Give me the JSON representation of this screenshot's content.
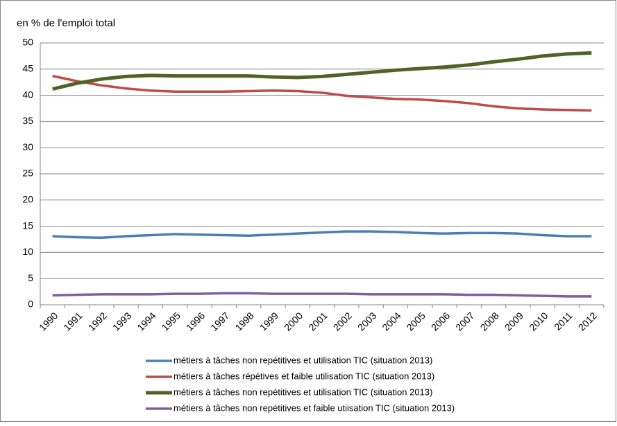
{
  "chart_data": {
    "type": "line",
    "y_axis_title": "en % de l'emploi total",
    "categories": [
      "1990",
      "1991",
      "1992",
      "1993",
      "1994",
      "1995",
      "1996",
      "1997",
      "1998",
      "1999",
      "2000",
      "2001",
      "2002",
      "2003",
      "2004",
      "2005",
      "2006",
      "2007",
      "2008",
      "2009",
      "2010",
      "2011",
      "2012"
    ],
    "series": [
      {
        "name": "métiers à tâches non repétitives et utilisation TIC (situation 2013)",
        "color": "#4a7ebb",
        "values": [
          13.1,
          12.9,
          12.8,
          13.1,
          13.3,
          13.5,
          13.4,
          13.3,
          13.2,
          13.4,
          13.6,
          13.8,
          14.0,
          14.0,
          13.9,
          13.7,
          13.6,
          13.7,
          13.7,
          13.6,
          13.3,
          13.1,
          13.1
        ]
      },
      {
        "name": "métiers à tâches répétives et faible utilisation TIC (situation 2013)",
        "color": "#be4b48",
        "values": [
          43.7,
          42.7,
          41.9,
          41.3,
          40.9,
          40.7,
          40.7,
          40.7,
          40.8,
          40.9,
          40.8,
          40.5,
          39.9,
          39.6,
          39.3,
          39.2,
          38.9,
          38.5,
          37.9,
          37.5,
          37.3,
          37.2,
          37.1
        ]
      },
      {
        "name": "métiers à tâches non repétitives et utilisation TIC (situation 2013)",
        "color": "#4f6228",
        "values": [
          41.2,
          42.3,
          43.1,
          43.6,
          43.8,
          43.7,
          43.7,
          43.7,
          43.7,
          43.5,
          43.4,
          43.6,
          44.0,
          44.4,
          44.8,
          45.1,
          45.4,
          45.8,
          46.4,
          46.9,
          47.5,
          47.9,
          48.1
        ]
      },
      {
        "name": "métiers à tâches non repétitives et faible utiisation TIC (situation 2013)",
        "color": "#7d5fa0",
        "values": [
          1.8,
          1.9,
          2.0,
          2.0,
          2.0,
          2.1,
          2.1,
          2.2,
          2.2,
          2.1,
          2.1,
          2.1,
          2.1,
          2.0,
          2.0,
          2.0,
          2.0,
          1.9,
          1.9,
          1.8,
          1.7,
          1.6,
          1.6
        ]
      }
    ],
    "ylim": [
      0,
      50
    ],
    "yticks": [
      0,
      5,
      10,
      15,
      20,
      25,
      30,
      35,
      40,
      45,
      50
    ],
    "grid": true,
    "legend": "bottom"
  }
}
